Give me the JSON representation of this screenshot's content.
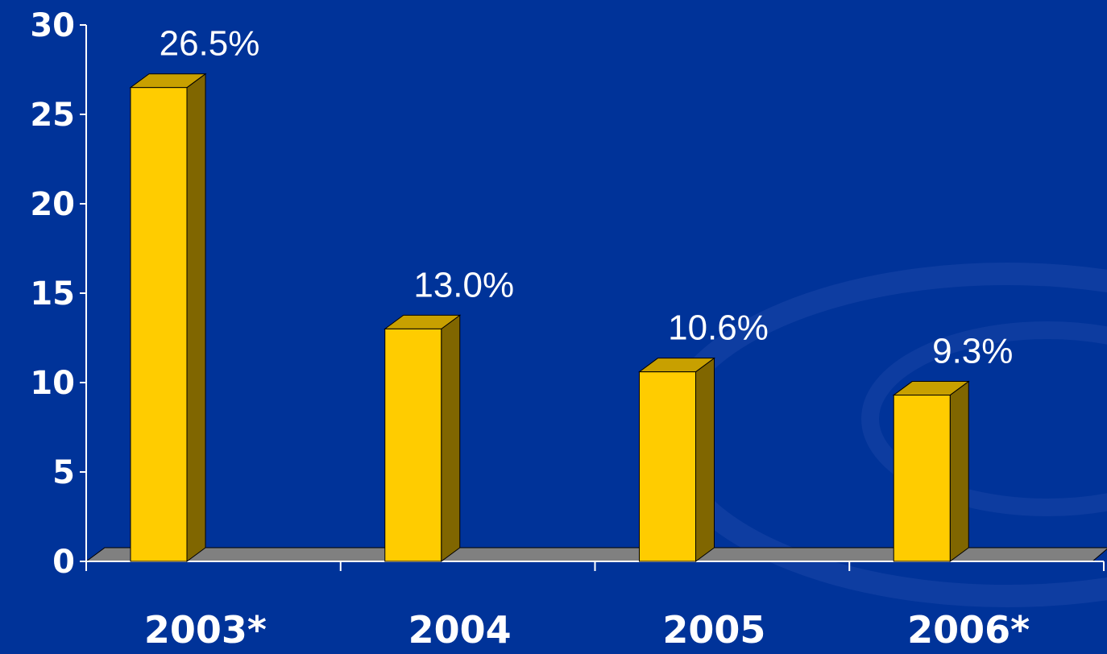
{
  "chart_data": {
    "type": "bar",
    "categories": [
      "2003*",
      "2004",
      "2005",
      "2006*"
    ],
    "values": [
      26.5,
      13.0,
      10.6,
      9.3
    ],
    "data_labels": [
      "26.5%",
      "13.0%",
      "10.6%",
      "9.3%"
    ],
    "ylim": [
      0,
      30
    ],
    "yticks": [
      "0",
      "5",
      "10",
      "15",
      "20",
      "25",
      "30"
    ],
    "title": "",
    "xlabel": "",
    "ylabel": "",
    "style": "3d-column",
    "grid": false,
    "legend": "none",
    "colors": {
      "background": "#003399",
      "bar_front": "#FFCC00",
      "bar_top": "#C8A000",
      "bar_side": "#806600",
      "floor": "#808080",
      "axis": "#ffffff",
      "text": "#ffffff"
    }
  }
}
